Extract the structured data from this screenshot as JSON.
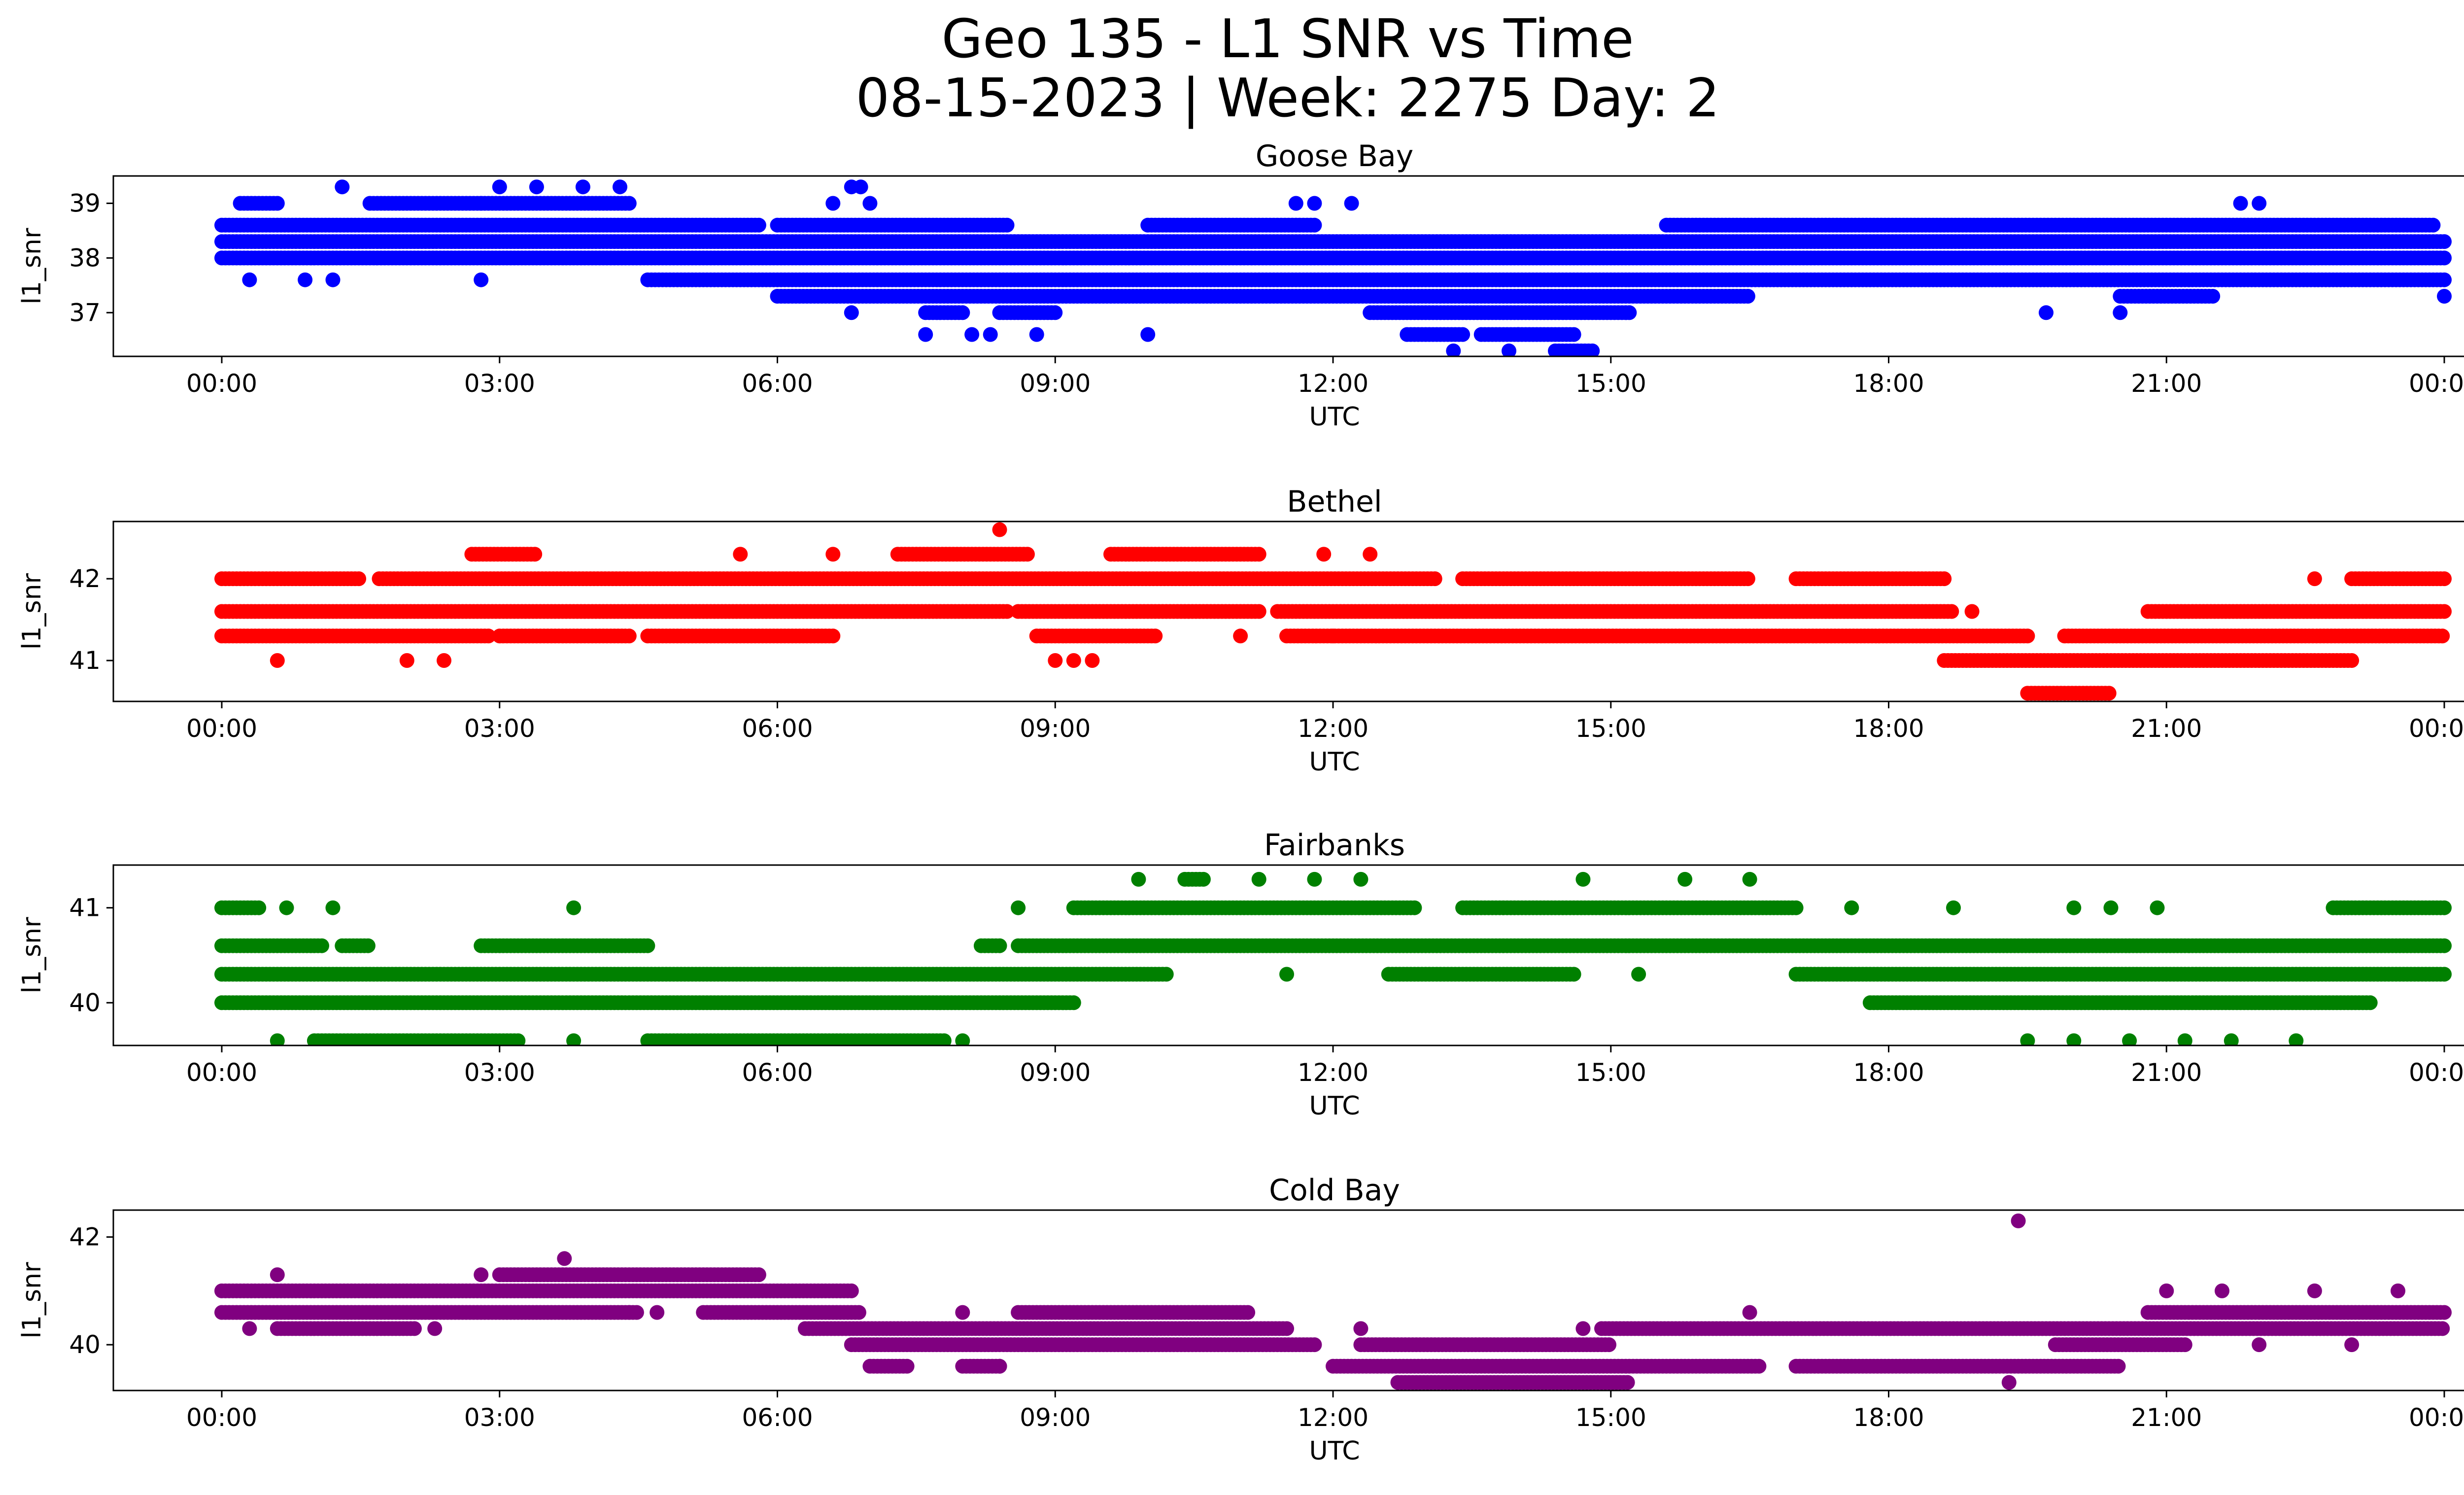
{
  "figure": {
    "title_line1": "Geo 135 - L1 SNR vs Time",
    "title_line2": "08-15-2023 | Week: 2275 Day: 2"
  },
  "chart_data": [
    {
      "type": "scatter",
      "title": "Goose Bay",
      "xlabel": "UTC",
      "ylabel": "l1_snr",
      "color": "#0000ff",
      "x_ticks": [
        "00:00",
        "03:00",
        "06:00",
        "09:00",
        "12:00",
        "15:00",
        "18:00",
        "21:00",
        "00:00"
      ],
      "y_ticks": [
        37,
        38,
        39
      ],
      "ylim": [
        36.2,
        39.5
      ],
      "levels": [
        {
          "y": 38.6,
          "segments": [
            [
              0.0,
              5.8
            ],
            [
              6.0,
              8.5
            ],
            [
              10.0,
              11.8
            ],
            [
              15.6,
              23.9
            ]
          ]
        },
        {
          "y": 38.3,
          "segments": [
            [
              0.0,
              24.0
            ]
          ]
        },
        {
          "y": 38.0,
          "segments": [
            [
              0.0,
              24.0
            ]
          ]
        },
        {
          "y": 37.6,
          "segments": [
            [
              4.6,
              24.0
            ]
          ]
        },
        {
          "y": 37.3,
          "segments": [
            [
              6.0,
              16.5
            ],
            [
              20.5,
              21.5
            ]
          ]
        },
        {
          "y": 37.0,
          "segments": [
            [
              7.6,
              8.0
            ],
            [
              8.4,
              9.0
            ],
            [
              12.4,
              15.2
            ]
          ]
        },
        {
          "y": 39.0,
          "segments": [
            [
              0.2,
              0.6
            ],
            [
              1.6,
              2.8
            ],
            [
              2.8,
              4.4
            ]
          ]
        },
        {
          "y": 36.6,
          "segments": [
            [
              12.8,
              13.4
            ],
            [
              13.6,
              14.6
            ]
          ]
        },
        {
          "y": 36.3,
          "segments": [
            [
              14.4,
              14.8
            ]
          ]
        }
      ],
      "points": [
        {
          "x": 0.3,
          "y": 37.6
        },
        {
          "x": 0.9,
          "y": 37.6
        },
        {
          "x": 1.2,
          "y": 37.6
        },
        {
          "x": 1.3,
          "y": 39.3
        },
        {
          "x": 2.8,
          "y": 37.6
        },
        {
          "x": 3.0,
          "y": 39.3
        },
        {
          "x": 3.4,
          "y": 39.3
        },
        {
          "x": 3.9,
          "y": 39.3
        },
        {
          "x": 4.3,
          "y": 39.3
        },
        {
          "x": 6.8,
          "y": 39.3
        },
        {
          "x": 6.9,
          "y": 39.3
        },
        {
          "x": 6.6,
          "y": 39.0
        },
        {
          "x": 7.0,
          "y": 39.0
        },
        {
          "x": 6.8,
          "y": 37.0
        },
        {
          "x": 7.6,
          "y": 36.6
        },
        {
          "x": 8.1,
          "y": 36.6
        },
        {
          "x": 8.3,
          "y": 36.6
        },
        {
          "x": 8.8,
          "y": 36.6
        },
        {
          "x": 10.0,
          "y": 36.6
        },
        {
          "x": 11.6,
          "y": 39.0
        },
        {
          "x": 11.8,
          "y": 39.0
        },
        {
          "x": 12.2,
          "y": 39.0
        },
        {
          "x": 13.3,
          "y": 36.3
        },
        {
          "x": 13.9,
          "y": 36.3
        },
        {
          "x": 14.0,
          "y": 36.6
        },
        {
          "x": 19.7,
          "y": 37.0
        },
        {
          "x": 20.5,
          "y": 37.0
        },
        {
          "x": 21.8,
          "y": 39.0
        },
        {
          "x": 22.0,
          "y": 39.0
        },
        {
          "x": 24.0,
          "y": 37.3
        }
      ]
    },
    {
      "type": "scatter",
      "title": "Bethel",
      "xlabel": "UTC",
      "ylabel": "l1_snr",
      "color": "#ff0000",
      "x_ticks": [
        "00:00",
        "03:00",
        "06:00",
        "09:00",
        "12:00",
        "15:00",
        "18:00",
        "21:00",
        "00:00"
      ],
      "y_ticks": [
        41,
        42
      ],
      "ylim": [
        40.5,
        42.7
      ],
      "levels": [
        {
          "y": 42.0,
          "segments": [
            [
              0.0,
              1.5
            ],
            [
              1.7,
              13.1
            ],
            [
              13.4,
              16.5
            ],
            [
              17.0,
              18.6
            ],
            [
              23.0,
              24.0
            ]
          ]
        },
        {
          "y": 41.6,
          "segments": [
            [
              0.0,
              8.5
            ],
            [
              8.6,
              11.2
            ],
            [
              11.4,
              18.7
            ],
            [
              20.8,
              24.0
            ]
          ]
        },
        {
          "y": 41.3,
          "segments": [
            [
              0.0,
              2.9
            ],
            [
              3.0,
              4.4
            ],
            [
              4.6,
              6.6
            ],
            [
              8.8,
              10.1
            ],
            [
              11.5,
              19.5
            ],
            [
              19.9,
              24.0
            ]
          ]
        },
        {
          "y": 41.0,
          "segments": [
            [
              18.6,
              23.0
            ]
          ]
        },
        {
          "y": 42.3,
          "segments": [
            [
              2.7,
              3.4
            ],
            [
              7.3,
              8.7
            ],
            [
              9.6,
              11.2
            ]
          ]
        },
        {
          "y": 40.6,
          "segments": [
            [
              19.5,
              20.4
            ]
          ]
        }
      ],
      "points": [
        {
          "x": 0.6,
          "y": 41.0
        },
        {
          "x": 2.0,
          "y": 41.0
        },
        {
          "x": 2.4,
          "y": 41.0
        },
        {
          "x": 8.4,
          "y": 42.6
        },
        {
          "x": 9.0,
          "y": 41.0
        },
        {
          "x": 9.2,
          "y": 41.0
        },
        {
          "x": 9.4,
          "y": 41.0
        },
        {
          "x": 5.6,
          "y": 42.3
        },
        {
          "x": 6.6,
          "y": 42.3
        },
        {
          "x": 11.9,
          "y": 42.3
        },
        {
          "x": 12.4,
          "y": 42.3
        },
        {
          "x": 22.6,
          "y": 42.0
        },
        {
          "x": 18.9,
          "y": 41.6
        },
        {
          "x": 11.0,
          "y": 41.3
        },
        {
          "x": 12.0,
          "y": 41.3
        }
      ]
    },
    {
      "type": "scatter",
      "title": "Fairbanks",
      "xlabel": "UTC",
      "ylabel": "l1_snr",
      "color": "#008000",
      "x_ticks": [
        "00:00",
        "03:00",
        "06:00",
        "09:00",
        "12:00",
        "15:00",
        "18:00",
        "21:00",
        "00:00"
      ],
      "y_ticks": [
        40,
        41
      ],
      "ylim": [
        39.55,
        41.45
      ],
      "levels": [
        {
          "y": 40.6,
          "segments": [
            [
              0.0,
              1.1
            ],
            [
              1.3,
              1.6
            ],
            [
              2.8,
              4.6
            ],
            [
              8.2,
              8.4
            ],
            [
              8.6,
              24.0
            ]
          ]
        },
        {
          "y": 40.3,
          "segments": [
            [
              0.0,
              10.2
            ],
            [
              12.6,
              14.6
            ],
            [
              17.0,
              24.0
            ]
          ]
        },
        {
          "y": 40.0,
          "segments": [
            [
              0.0,
              9.2
            ],
            [
              17.8,
              23.2
            ]
          ]
        },
        {
          "y": 41.0,
          "segments": [
            [
              0.0,
              0.4
            ],
            [
              9.2,
              12.9
            ],
            [
              13.4,
              17.0
            ],
            [
              22.8,
              24.0
            ]
          ]
        },
        {
          "y": 39.6,
          "segments": [
            [
              4.6,
              7.8
            ],
            [
              1.0,
              3.2
            ]
          ]
        },
        {
          "y": 41.3,
          "segments": [
            [
              10.4,
              10.6
            ]
          ]
        }
      ],
      "points": [
        {
          "x": 0.7,
          "y": 41.0
        },
        {
          "x": 1.2,
          "y": 41.0
        },
        {
          "x": 3.8,
          "y": 41.0
        },
        {
          "x": 8.6,
          "y": 41.0
        },
        {
          "x": 9.9,
          "y": 41.3
        },
        {
          "x": 11.2,
          "y": 41.3
        },
        {
          "x": 11.8,
          "y": 41.3
        },
        {
          "x": 12.3,
          "y": 41.3
        },
        {
          "x": 14.7,
          "y": 41.3
        },
        {
          "x": 15.8,
          "y": 41.3
        },
        {
          "x": 16.5,
          "y": 41.3
        },
        {
          "x": 11.5,
          "y": 40.3
        },
        {
          "x": 15.3,
          "y": 40.3
        },
        {
          "x": 0.6,
          "y": 39.6
        },
        {
          "x": 3.8,
          "y": 39.6
        },
        {
          "x": 8.0,
          "y": 39.6
        },
        {
          "x": 19.5,
          "y": 39.6
        },
        {
          "x": 20.0,
          "y": 39.6
        },
        {
          "x": 20.6,
          "y": 39.6
        },
        {
          "x": 21.2,
          "y": 39.6
        },
        {
          "x": 21.7,
          "y": 39.6
        },
        {
          "x": 22.4,
          "y": 39.6
        },
        {
          "x": 17.6,
          "y": 41.0
        },
        {
          "x": 18.7,
          "y": 41.0
        },
        {
          "x": 20.0,
          "y": 41.0
        },
        {
          "x": 20.4,
          "y": 41.0
        },
        {
          "x": 20.9,
          "y": 41.0
        }
      ]
    },
    {
      "type": "scatter",
      "title": "Cold Bay",
      "xlabel": "UTC",
      "ylabel": "l1_snr",
      "color": "#800080",
      "x_ticks": [
        "00:00",
        "03:00",
        "06:00",
        "09:00",
        "12:00",
        "15:00",
        "18:00",
        "21:00",
        "00:00"
      ],
      "y_ticks": [
        40,
        42
      ],
      "ylim": [
        39.15,
        42.5
      ],
      "levels": [
        {
          "y": 41.0,
          "segments": [
            [
              0.0,
              6.8
            ]
          ]
        },
        {
          "y": 40.6,
          "segments": [
            [
              0.0,
              4.5
            ],
            [
              5.2,
              6.9
            ],
            [
              8.6,
              11.1
            ],
            [
              20.8,
              24.0
            ]
          ]
        },
        {
          "y": 40.3,
          "segments": [
            [
              0.6,
              2.1
            ],
            [
              6.3,
              11.5
            ],
            [
              14.9,
              24.0
            ]
          ]
        },
        {
          "y": 40.0,
          "segments": [
            [
              6.8,
              11.8
            ],
            [
              12.3,
              15.0
            ],
            [
              19.8,
              21.2
            ]
          ]
        },
        {
          "y": 41.3,
          "segments": [
            [
              3.0,
              5.8
            ]
          ]
        },
        {
          "y": 39.6,
          "segments": [
            [
              7.0,
              7.4
            ],
            [
              8.0,
              8.4
            ],
            [
              12.0,
              16.6
            ],
            [
              17.0,
              20.5
            ]
          ]
        },
        {
          "y": 39.3,
          "segments": [
            [
              12.7,
              15.2
            ]
          ]
        }
      ],
      "points": [
        {
          "x": 0.6,
          "y": 41.3
        },
        {
          "x": 0.3,
          "y": 40.3
        },
        {
          "x": 2.3,
          "y": 40.3
        },
        {
          "x": 3.7,
          "y": 41.6
        },
        {
          "x": 2.8,
          "y": 41.3
        },
        {
          "x": 4.4,
          "y": 40.6
        },
        {
          "x": 4.7,
          "y": 40.6
        },
        {
          "x": 8.0,
          "y": 40.6
        },
        {
          "x": 8.4,
          "y": 39.6
        },
        {
          "x": 12.3,
          "y": 40.3
        },
        {
          "x": 14.7,
          "y": 40.3
        },
        {
          "x": 16.5,
          "y": 40.6
        },
        {
          "x": 19.4,
          "y": 42.3
        },
        {
          "x": 19.3,
          "y": 39.3
        },
        {
          "x": 21.0,
          "y": 41.0
        },
        {
          "x": 21.6,
          "y": 41.0
        },
        {
          "x": 22.6,
          "y": 41.0
        },
        {
          "x": 23.5,
          "y": 41.0
        },
        {
          "x": 23.0,
          "y": 40.0
        },
        {
          "x": 22.0,
          "y": 40.0
        }
      ]
    }
  ]
}
